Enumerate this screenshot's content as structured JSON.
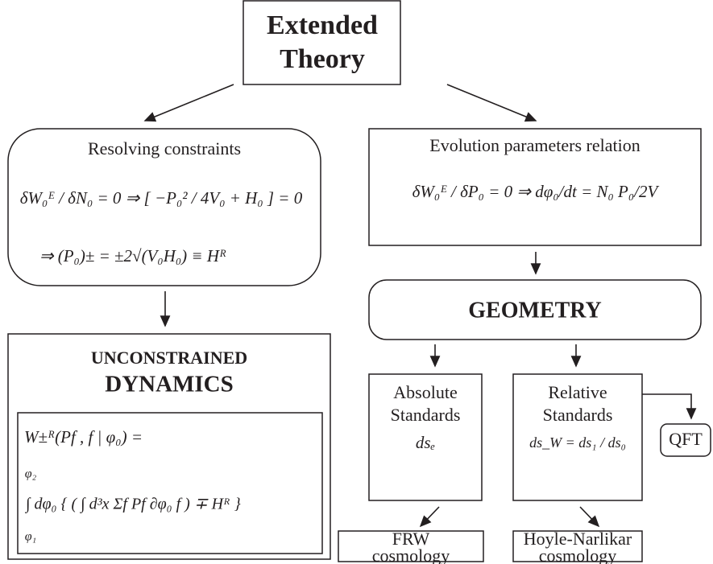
{
  "nodes": [
    {
      "lines": [
        "Extended",
        "Theory"
      ]
    },
    {
      "lines": [
        "Resolving constraints",
        "δW₀ᴱ / δN₀ = 0 ⇒ [ −P₀² / 4V₀ + H₀ ] = 0",
        "⇒ (P₀)± = ±2√(V₀H₀) ≡ Hᴿ"
      ]
    },
    {
      "lines": [
        "UNCONSTRAINED",
        "DYNAMICS",
        "W±ᴿ(Pf , f | φ₀) =",
        "∫ dφ₀ { ( ∫ d³x Σf Pf ∂φ₀ f ) ∓ Hᴿ }",
        "φ₂",
        "φ₁"
      ]
    },
    {
      "lines": [
        "Evolution parameters relation",
        "δW₀ᴱ / δP₀ = 0 ⇒ dφ₀/dt = N₀ P₀/2V"
      ]
    },
    {
      "lines": [
        "GEOMETRY"
      ]
    },
    {
      "lines": [
        "Absolute",
        "Standards",
        "dsₑ"
      ]
    },
    {
      "lines": [
        "Relative",
        "Standards",
        "ds_W = ds₁ / ds₀"
      ]
    },
    {
      "lines": [
        "QFT"
      ]
    },
    {
      "lines": [
        "FRW",
        "cosmology"
      ]
    },
    {
      "lines": [
        "Hoyle-Narlikar",
        "cosmology"
      ]
    }
  ]
}
